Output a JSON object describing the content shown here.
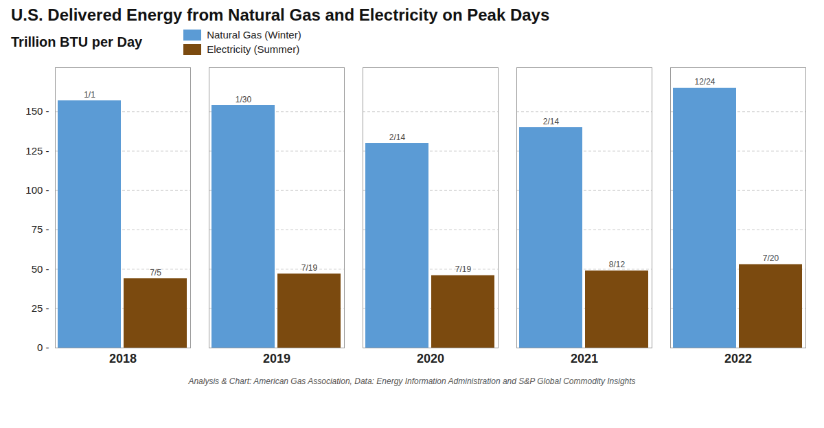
{
  "chart_data": {
    "type": "bar",
    "title": "U.S. Delivered Energy from Natural Gas and Electricity on Peak Days",
    "subtitle": "Trillion BTU per Day",
    "footnote": "Analysis & Chart: American Gas Association, Data: Energy Information Administration and S&P Global Commodity Insights",
    "categories": [
      "2018",
      "2019",
      "2020",
      "2021",
      "2022"
    ],
    "series": [
      {
        "name": "Natural Gas (Winter)",
        "color": "#5B9BD5",
        "values": [
          157,
          154,
          130,
          140,
          165
        ],
        "annotations": [
          "1/1",
          "1/30",
          "2/14",
          "2/14",
          "12/24"
        ]
      },
      {
        "name": "Electricity (Summer)",
        "color": "#7B4A0F",
        "values": [
          44,
          47,
          46,
          49,
          53
        ],
        "annotations": [
          "7/5",
          "7/19",
          "7/19",
          "8/12",
          "7/20"
        ]
      }
    ],
    "ylim": [
      0,
      178
    ],
    "yticks": [
      {
        "value": 0,
        "label": "0 -"
      },
      {
        "value": 25,
        "label": "25 -"
      },
      {
        "value": 50,
        "label": "50 -"
      },
      {
        "value": 75,
        "label": "75 -"
      },
      {
        "value": 100,
        "label": "100 -"
      },
      {
        "value": 125,
        "label": "125 -"
      },
      {
        "value": 150,
        "label": "150 -"
      }
    ],
    "grid": true,
    "legend": "top"
  }
}
